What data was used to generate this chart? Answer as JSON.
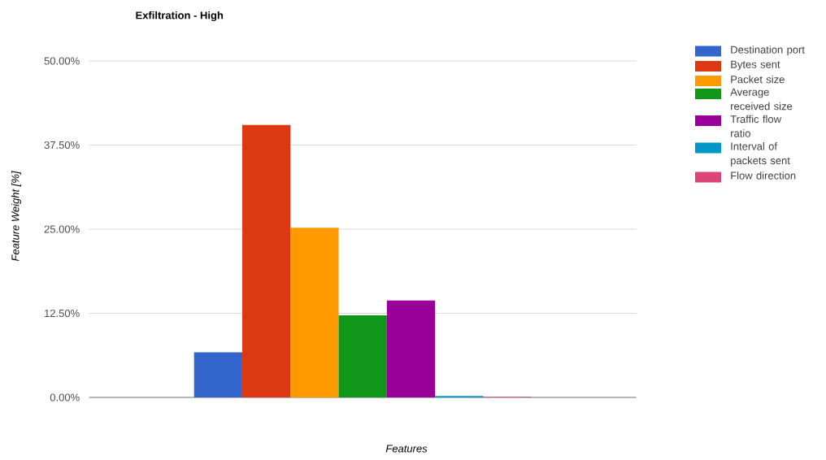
{
  "chart_data": {
    "type": "bar",
    "title": "Exfiltration - High",
    "xlabel": "Features",
    "ylabel": "Feature Weight [%]",
    "categories": [
      null
    ],
    "series": [
      {
        "name": "Destination port",
        "color": "#3366cc",
        "values": [
          6.7
        ]
      },
      {
        "name": "Bytes sent",
        "color": "#dc3912",
        "values": [
          40.5
        ]
      },
      {
        "name": "Packet size",
        "color": "#ff9900",
        "values": [
          25.2
        ]
      },
      {
        "name": "Average received size",
        "color": "#109618",
        "values": [
          12.2
        ]
      },
      {
        "name": "Traffic flow ratio",
        "color": "#990099",
        "values": [
          14.4
        ]
      },
      {
        "name": "Interval of packets sent",
        "color": "#0099c6",
        "values": [
          0.2
        ]
      },
      {
        "name": "Flow direction",
        "color": "#dd4477",
        "values": [
          0.1
        ]
      }
    ],
    "ylim": [
      0,
      50
    ],
    "yticks": [
      {
        "value": 0,
        "label": "0.00%"
      },
      {
        "value": 12.5,
        "label": "12.50%"
      },
      {
        "value": 25,
        "label": "25.00%"
      },
      {
        "value": 37.5,
        "label": "37.50%"
      },
      {
        "value": 50,
        "label": "50.00%"
      }
    ],
    "grid": "y",
    "legend": "right"
  }
}
